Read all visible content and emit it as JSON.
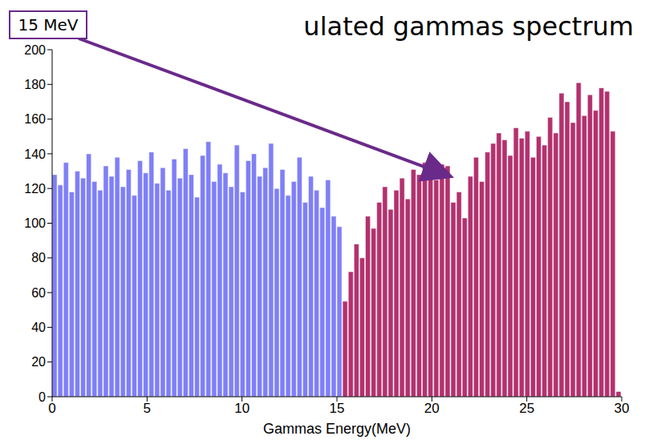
{
  "chart_data": {
    "type": "bar",
    "title": "ulated gammas spectrum",
    "x_label": "Gammas Energy(MeV)",
    "annotation": "15 MeV",
    "bins": [
      0,
      0.3,
      0.6,
      0.9,
      1.2,
      1.5,
      1.8,
      2.1,
      2.4,
      2.7,
      3,
      3.3,
      3.6,
      3.9,
      4.2,
      4.5,
      4.8,
      5.1,
      5.4,
      5.7,
      6,
      6.3,
      6.6,
      6.9,
      7.2,
      7.5,
      7.8,
      8.1,
      8.4,
      8.7,
      9,
      9.3,
      9.6,
      9.9,
      10.2,
      10.5,
      10.8,
      11.1,
      11.4,
      11.7,
      12,
      12.3,
      12.6,
      12.9,
      13.2,
      13.5,
      13.8,
      14.1,
      14.4,
      14.7,
      15,
      15.3,
      15.6,
      15.9,
      16.2,
      16.5,
      16.8,
      17.1,
      17.4,
      17.7,
      18,
      18.3,
      18.6,
      18.9,
      19.2,
      19.5,
      19.8,
      20.1,
      20.4,
      20.7,
      21,
      21.3,
      21.6,
      21.9,
      22.2,
      22.5,
      22.8,
      23.1,
      23.4,
      23.7,
      24,
      24.3,
      24.6,
      24.9,
      25.2,
      25.5,
      25.8,
      26.1,
      26.4,
      26.7,
      27,
      27.3,
      27.6,
      27.9,
      28.2,
      28.5,
      28.8,
      29.1,
      29.4,
      29.7,
      30
    ],
    "values": [
      128,
      122,
      135,
      118,
      130,
      126,
      140,
      124,
      119,
      133,
      127,
      138,
      121,
      131,
      116,
      136,
      129,
      141,
      123,
      132,
      119,
      137,
      126,
      143,
      128,
      115,
      139,
      147,
      124,
      134,
      129,
      121,
      145,
      118,
      136,
      140,
      127,
      132,
      146,
      120,
      131,
      116,
      124,
      138,
      112,
      127,
      119,
      109,
      125,
      104,
      98,
      55,
      72,
      88,
      80,
      104,
      97,
      112,
      121,
      108,
      119,
      126,
      114,
      131,
      128,
      135,
      132,
      125,
      134,
      133,
      112,
      118,
      103,
      127,
      138,
      124,
      141,
      146,
      152,
      148,
      139,
      155,
      149,
      153,
      138,
      150,
      145,
      161,
      152,
      175,
      170,
      158,
      181,
      162,
      174,
      165,
      178,
      176,
      153,
      3
    ],
    "colors": [
      "#7f7ff7",
      "#7f7ff7",
      "#7f7ff7",
      "#7f7ff7",
      "#7f7ff7",
      "#7f7ff7",
      "#7f7ff7",
      "#7f7ff7",
      "#7f7ff7",
      "#7f7ff7",
      "#7f7ff7",
      "#7f7ff7",
      "#7f7ff7",
      "#7f7ff7",
      "#7f7ff7",
      "#7f7ff7",
      "#7f7ff7",
      "#7f7ff7",
      "#7f7ff7",
      "#7f7ff7",
      "#7f7ff7",
      "#7f7ff7",
      "#7f7ff7",
      "#7f7ff7",
      "#7f7ff7",
      "#7f7ff7",
      "#7f7ff7",
      "#7f7ff7",
      "#7f7ff7",
      "#7f7ff7",
      "#7f7ff7",
      "#7f7ff7",
      "#7f7ff7",
      "#7f7ff7",
      "#7f7ff7",
      "#7f7ff7",
      "#7f7ff7",
      "#7f7ff7",
      "#7f7ff7",
      "#7f7ff7",
      "#7f7ff7",
      "#7f7ff7",
      "#7f7ff7",
      "#7f7ff7",
      "#7f7ff7",
      "#7f7ff7",
      "#7f7ff7",
      "#7f7ff7",
      "#7f7ff7",
      "#7f7ff7",
      "#7f7ff7",
      "#b3316e",
      "#b3316e",
      "#b3316e",
      "#b3316e",
      "#b3316e",
      "#b3316e",
      "#b3316e",
      "#b3316e",
      "#b3316e",
      "#b3316e",
      "#b3316e",
      "#b3316e",
      "#b3316e",
      "#b3316e",
      "#b3316e",
      "#b3316e",
      "#b3316e",
      "#b3316e",
      "#b3316e",
      "#b3316e",
      "#b3316e",
      "#b3316e",
      "#b3316e",
      "#b3316e",
      "#b3316e",
      "#b3316e",
      "#b3316e",
      "#b3316e",
      "#b3316e",
      "#b3316e",
      "#b3316e",
      "#b3316e",
      "#b3316e",
      "#b3316e",
      "#b3316e",
      "#b3316e",
      "#b3316e",
      "#b3316e",
      "#b3316e",
      "#b3316e",
      "#b3316e",
      "#b3316e",
      "#b3316e",
      "#b3316e",
      "#b3316e",
      "#b3316e",
      "#b3316e",
      "#b3316e",
      "#b3316e"
    ],
    "xlim": [
      0,
      30
    ],
    "xticks": [
      0,
      5,
      10,
      15,
      20,
      25,
      30
    ],
    "ylim": [
      0,
      200
    ],
    "yticks": [
      0,
      20,
      40,
      60,
      80,
      100,
      120,
      140,
      160,
      180,
      200
    ],
    "grid": false
  }
}
